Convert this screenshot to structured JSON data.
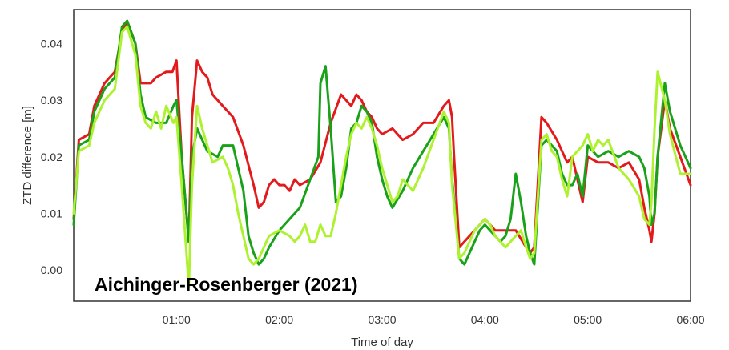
{
  "chart_data": {
    "type": "line",
    "xlabel": "Time of day",
    "ylabel": "ZTD difference [m]",
    "xlim": [
      0,
      6
    ],
    "ylim": [
      -0.0055,
      0.046
    ],
    "x_ticks": [
      {
        "value": 1,
        "label": "01:00"
      },
      {
        "value": 2,
        "label": "02:00"
      },
      {
        "value": 3,
        "label": "03:00"
      },
      {
        "value": 4,
        "label": "04:00"
      },
      {
        "value": 5,
        "label": "05:00"
      },
      {
        "value": 6,
        "label": "06:00"
      }
    ],
    "y_ticks": [
      {
        "value": 0.0,
        "label": "0.00"
      },
      {
        "value": 0.01,
        "label": "0.01"
      },
      {
        "value": 0.02,
        "label": "0.02"
      },
      {
        "value": 0.03,
        "label": "0.03"
      },
      {
        "value": 0.04,
        "label": "0.04"
      }
    ],
    "grid": false,
    "annotation": "Aichinger-Rosenberger (2021)",
    "series": [
      {
        "color": "#e31a1c",
        "x": [
          0.0,
          0.05,
          0.15,
          0.2,
          0.3,
          0.4,
          0.47,
          0.52,
          0.6,
          0.65,
          0.75,
          0.8,
          0.9,
          0.96,
          1.0,
          1.05,
          1.12,
          1.15,
          1.2,
          1.25,
          1.3,
          1.35,
          1.45,
          1.55,
          1.65,
          1.75,
          1.8,
          1.85,
          1.9,
          1.95,
          2.0,
          2.05,
          2.1,
          2.15,
          2.2,
          2.3,
          2.4,
          2.5,
          2.6,
          2.7,
          2.75,
          2.8,
          2.85,
          2.9,
          2.95,
          3.0,
          3.1,
          3.2,
          3.3,
          3.4,
          3.5,
          3.6,
          3.65,
          3.68,
          3.7,
          3.75,
          3.8,
          3.85,
          3.9,
          3.95,
          4.0,
          4.05,
          4.1,
          4.2,
          4.25,
          4.3,
          4.4,
          4.44,
          4.48,
          4.55,
          4.6,
          4.7,
          4.75,
          4.8,
          4.85,
          4.9,
          4.95,
          5.0,
          5.1,
          5.2,
          5.3,
          5.4,
          5.5,
          5.55,
          5.6,
          5.62,
          5.65,
          5.68,
          5.75,
          5.8,
          5.9,
          6.0
        ],
        "y": [
          0.009,
          0.023,
          0.024,
          0.029,
          0.033,
          0.035,
          0.042,
          0.044,
          0.04,
          0.033,
          0.033,
          0.034,
          0.035,
          0.035,
          0.037,
          0.02,
          0.005,
          0.027,
          0.037,
          0.035,
          0.034,
          0.031,
          0.029,
          0.027,
          0.022,
          0.015,
          0.011,
          0.012,
          0.015,
          0.016,
          0.015,
          0.015,
          0.014,
          0.016,
          0.015,
          0.016,
          0.019,
          0.026,
          0.031,
          0.029,
          0.031,
          0.03,
          0.028,
          0.027,
          0.025,
          0.024,
          0.025,
          0.023,
          0.024,
          0.026,
          0.026,
          0.029,
          0.03,
          0.027,
          0.02,
          0.004,
          0.005,
          0.006,
          0.007,
          0.008,
          0.009,
          0.008,
          0.007,
          0.007,
          0.007,
          0.007,
          0.004,
          0.003,
          0.004,
          0.027,
          0.026,
          0.023,
          0.021,
          0.019,
          0.02,
          0.016,
          0.012,
          0.02,
          0.019,
          0.019,
          0.018,
          0.019,
          0.016,
          0.011,
          0.007,
          0.005,
          0.01,
          0.02,
          0.03,
          0.025,
          0.02,
          0.015
        ]
      },
      {
        "color": "#1aa11a",
        "x": [
          0.0,
          0.05,
          0.15,
          0.2,
          0.3,
          0.4,
          0.47,
          0.52,
          0.6,
          0.65,
          0.7,
          0.8,
          0.9,
          0.97,
          1.0,
          1.05,
          1.12,
          1.15,
          1.2,
          1.25,
          1.3,
          1.4,
          1.45,
          1.55,
          1.6,
          1.65,
          1.7,
          1.75,
          1.8,
          1.85,
          1.9,
          2.0,
          2.1,
          2.2,
          2.3,
          2.38,
          2.4,
          2.45,
          2.5,
          2.55,
          2.6,
          2.65,
          2.7,
          2.75,
          2.8,
          2.85,
          2.9,
          2.95,
          3.0,
          3.05,
          3.1,
          3.2,
          3.3,
          3.4,
          3.5,
          3.6,
          3.65,
          3.68,
          3.75,
          3.8,
          3.85,
          3.9,
          3.95,
          4.0,
          4.05,
          4.1,
          4.15,
          4.2,
          4.25,
          4.3,
          4.35,
          4.4,
          4.44,
          4.48,
          4.55,
          4.6,
          4.65,
          4.7,
          4.75,
          4.8,
          4.85,
          4.9,
          4.95,
          5.0,
          5.05,
          5.1,
          5.2,
          5.3,
          5.4,
          5.5,
          5.55,
          5.6,
          5.62,
          5.65,
          5.68,
          5.75,
          5.8,
          5.9,
          6.0
        ],
        "y": [
          0.008,
          0.022,
          0.023,
          0.028,
          0.032,
          0.034,
          0.043,
          0.044,
          0.04,
          0.031,
          0.027,
          0.026,
          0.026,
          0.029,
          0.03,
          0.02,
          0.005,
          0.02,
          0.025,
          0.023,
          0.021,
          0.02,
          0.022,
          0.022,
          0.018,
          0.014,
          0.006,
          0.003,
          0.001,
          0.002,
          0.004,
          0.007,
          0.009,
          0.011,
          0.016,
          0.02,
          0.033,
          0.036,
          0.025,
          0.012,
          0.013,
          0.018,
          0.025,
          0.026,
          0.029,
          0.028,
          0.026,
          0.02,
          0.016,
          0.013,
          0.011,
          0.014,
          0.018,
          0.021,
          0.024,
          0.027,
          0.025,
          0.016,
          0.002,
          0.001,
          0.003,
          0.005,
          0.007,
          0.008,
          0.007,
          0.006,
          0.005,
          0.006,
          0.009,
          0.017,
          0.012,
          0.006,
          0.003,
          0.001,
          0.022,
          0.023,
          0.022,
          0.021,
          0.017,
          0.015,
          0.015,
          0.017,
          0.013,
          0.022,
          0.021,
          0.02,
          0.021,
          0.02,
          0.021,
          0.02,
          0.018,
          0.013,
          0.008,
          0.01,
          0.02,
          0.033,
          0.028,
          0.022,
          0.018
        ]
      },
      {
        "color": "#adf12f",
        "x": [
          0.0,
          0.05,
          0.15,
          0.2,
          0.3,
          0.4,
          0.47,
          0.52,
          0.6,
          0.65,
          0.7,
          0.75,
          0.8,
          0.85,
          0.9,
          0.97,
          1.0,
          1.05,
          1.12,
          1.15,
          1.2,
          1.25,
          1.3,
          1.35,
          1.45,
          1.5,
          1.55,
          1.6,
          1.65,
          1.7,
          1.75,
          1.8,
          1.85,
          1.9,
          2.0,
          2.1,
          2.15,
          2.2,
          2.25,
          2.3,
          2.35,
          2.4,
          2.45,
          2.5,
          2.55,
          2.6,
          2.65,
          2.7,
          2.75,
          2.8,
          2.85,
          2.9,
          2.95,
          3.0,
          3.05,
          3.1,
          3.15,
          3.2,
          3.3,
          3.4,
          3.5,
          3.6,
          3.65,
          3.68,
          3.75,
          3.8,
          3.85,
          3.9,
          3.95,
          4.0,
          4.05,
          4.1,
          4.15,
          4.2,
          4.25,
          4.3,
          4.35,
          4.4,
          4.44,
          4.48,
          4.55,
          4.6,
          4.65,
          4.7,
          4.75,
          4.8,
          4.85,
          4.9,
          4.95,
          5.0,
          5.05,
          5.1,
          5.15,
          5.2,
          5.3,
          5.4,
          5.5,
          5.55,
          5.6,
          5.62,
          5.65,
          5.68,
          5.75,
          5.8,
          5.9,
          6.0
        ],
        "y": [
          0.01,
          0.021,
          0.022,
          0.026,
          0.03,
          0.032,
          0.042,
          0.043,
          0.038,
          0.029,
          0.026,
          0.025,
          0.028,
          0.025,
          0.029,
          0.026,
          0.027,
          0.015,
          -0.003,
          0.015,
          0.029,
          0.025,
          0.022,
          0.019,
          0.02,
          0.018,
          0.015,
          0.01,
          0.006,
          0.002,
          0.001,
          0.002,
          0.004,
          0.006,
          0.007,
          0.006,
          0.005,
          0.006,
          0.008,
          0.005,
          0.005,
          0.008,
          0.006,
          0.006,
          0.01,
          0.015,
          0.02,
          0.024,
          0.026,
          0.025,
          0.027,
          0.025,
          0.022,
          0.018,
          0.015,
          0.012,
          0.013,
          0.016,
          0.014,
          0.018,
          0.023,
          0.028,
          0.026,
          0.015,
          0.002,
          0.003,
          0.005,
          0.007,
          0.008,
          0.009,
          0.008,
          0.006,
          0.005,
          0.004,
          0.005,
          0.006,
          0.007,
          0.004,
          0.002,
          0.003,
          0.023,
          0.024,
          0.021,
          0.02,
          0.016,
          0.013,
          0.02,
          0.021,
          0.022,
          0.024,
          0.021,
          0.023,
          0.022,
          0.023,
          0.018,
          0.016,
          0.013,
          0.009,
          0.008,
          0.012,
          0.025,
          0.035,
          0.03,
          0.024,
          0.017,
          0.017
        ]
      }
    ]
  }
}
